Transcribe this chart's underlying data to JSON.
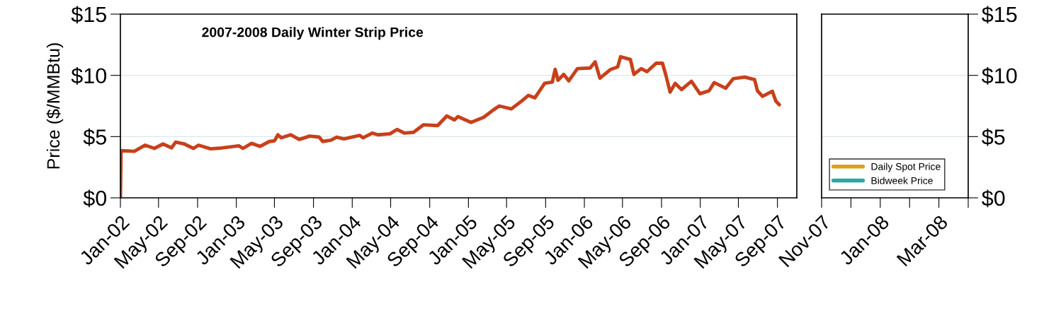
{
  "chart_data": [
    {
      "type": "line",
      "title": "2007-2008 Daily Winter Strip Price",
      "ylabel": "Price ($/MMBtu)",
      "grid": "y",
      "legend": false,
      "xlim": [
        "2002-01-01",
        "2007-11-01"
      ],
      "xticks": [
        {
          "value": "2002-01-01",
          "label": "Jan-02"
        },
        {
          "value": "2002-05-01",
          "label": "May-02"
        },
        {
          "value": "2002-09-01",
          "label": "Sep-02"
        },
        {
          "value": "2003-01-01",
          "label": "Jan-03"
        },
        {
          "value": "2003-05-01",
          "label": "May-03"
        },
        {
          "value": "2003-09-01",
          "label": "Sep-03"
        },
        {
          "value": "2004-01-01",
          "label": "Jan-04"
        },
        {
          "value": "2004-05-01",
          "label": "May-04"
        },
        {
          "value": "2004-09-01",
          "label": "Sep-04"
        },
        {
          "value": "2005-01-01",
          "label": "Jan-05"
        },
        {
          "value": "2005-05-01",
          "label": "May-05"
        },
        {
          "value": "2005-09-01",
          "label": "Sep-05"
        },
        {
          "value": "2006-01-01",
          "label": "Jan-06"
        },
        {
          "value": "2006-05-01",
          "label": "May-06"
        },
        {
          "value": "2006-09-01",
          "label": "Sep-06"
        },
        {
          "value": "2007-01-01",
          "label": "Jan-07"
        },
        {
          "value": "2007-05-01",
          "label": "May-07"
        },
        {
          "value": "2007-09-01",
          "label": "Sep-07"
        }
      ],
      "ylim": [
        0,
        15
      ],
      "yticks": [
        {
          "value": 0,
          "label": "$0"
        },
        {
          "value": 5,
          "label": "$5"
        },
        {
          "value": 10,
          "label": "$10"
        },
        {
          "value": 15,
          "label": "$15"
        }
      ],
      "series": [
        {
          "color": "#c8401a",
          "x": [
            "2002-01-01",
            "2002-01-03",
            "2002-02-14",
            "2002-03-20",
            "2002-04-18",
            "2002-05-15",
            "2002-06-11",
            "2002-06-24",
            "2002-07-21",
            "2002-08-19",
            "2002-09-04",
            "2002-10-12",
            "2002-11-16",
            "2003-01-09",
            "2003-01-22",
            "2003-02-18",
            "2003-03-17",
            "2003-04-15",
            "2003-05-01",
            "2003-05-12",
            "2003-05-23",
            "2003-06-21",
            "2003-07-18",
            "2003-08-20",
            "2003-09-19",
            "2003-09-30",
            "2003-10-26",
            "2003-11-13",
            "2003-12-06",
            "2004-01-24",
            "2004-02-04",
            "2004-03-04",
            "2004-03-22",
            "2004-04-29",
            "2004-05-21",
            "2004-06-13",
            "2004-07-12",
            "2004-08-12",
            "2004-09-26",
            "2004-10-25",
            "2004-11-18",
            "2004-11-29",
            "2005-01-09",
            "2005-02-18",
            "2005-03-21",
            "2005-04-08",
            "2005-05-16",
            "2005-06-18",
            "2005-07-09",
            "2005-07-29",
            "2005-08-29",
            "2005-09-22",
            "2005-10-01",
            "2005-10-10",
            "2005-10-28",
            "2005-11-13",
            "2005-12-10",
            "2006-01-19",
            "2006-02-04",
            "2006-02-19",
            "2006-03-25",
            "2006-04-16",
            "2006-04-25",
            "2006-05-26",
            "2006-06-06",
            "2006-06-29",
            "2006-07-17",
            "2006-08-15",
            "2006-09-04",
            "2006-09-15",
            "2006-09-28",
            "2006-10-14",
            "2006-11-03",
            "2006-12-04",
            "2006-12-31",
            "2007-01-29",
            "2007-02-14",
            "2007-03-22",
            "2007-04-15",
            "2007-05-21",
            "2007-06-21",
            "2007-06-30",
            "2007-07-16",
            "2007-08-16",
            "2007-08-27",
            "2007-09-07"
          ],
          "values": [
            0,
            3.85,
            3.8,
            4.3,
            4.04,
            4.4,
            4.08,
            4.55,
            4.4,
            4.04,
            4.3,
            4.0,
            4.07,
            4.25,
            4.04,
            4.45,
            4.2,
            4.6,
            4.65,
            5.15,
            4.9,
            5.15,
            4.77,
            5.04,
            4.96,
            4.6,
            4.71,
            4.96,
            4.81,
            5.1,
            4.9,
            5.29,
            5.15,
            5.23,
            5.58,
            5.29,
            5.35,
            5.96,
            5.9,
            6.69,
            6.36,
            6.63,
            6.16,
            6.58,
            7.19,
            7.5,
            7.26,
            7.91,
            8.37,
            8.16,
            9.35,
            9.45,
            10.49,
            9.6,
            10.08,
            9.55,
            10.55,
            10.6,
            11.1,
            9.77,
            10.49,
            10.69,
            11.52,
            11.3,
            10.08,
            10.55,
            10.3,
            10.99,
            10.99,
            9.98,
            8.63,
            9.35,
            8.84,
            9.52,
            8.5,
            8.75,
            9.41,
            8.95,
            9.73,
            9.86,
            9.66,
            8.74,
            8.29,
            8.7,
            7.9,
            7.6
          ]
        }
      ]
    },
    {
      "type": "line",
      "grid": "y",
      "legend": "bottom left",
      "categories": [
        "Nov-07",
        null,
        "Jan-08",
        null,
        "Mar-08",
        null
      ],
      "ylim": [
        0,
        15
      ],
      "yticks": [
        {
          "value": 0,
          "label": "$0"
        },
        {
          "value": 5,
          "label": "$5"
        },
        {
          "value": 10,
          "label": "$10"
        },
        {
          "value": 15,
          "label": "$15"
        }
      ],
      "series": [
        {
          "name": "Daily Spot Price",
          "color": "#d9a21b",
          "values": [
            null,
            null,
            null,
            null,
            null,
            null
          ]
        },
        {
          "name": "Bidweek Price",
          "color": "#2aa8a0",
          "values": [
            null,
            null,
            null,
            null,
            null,
            null
          ]
        }
      ]
    }
  ]
}
